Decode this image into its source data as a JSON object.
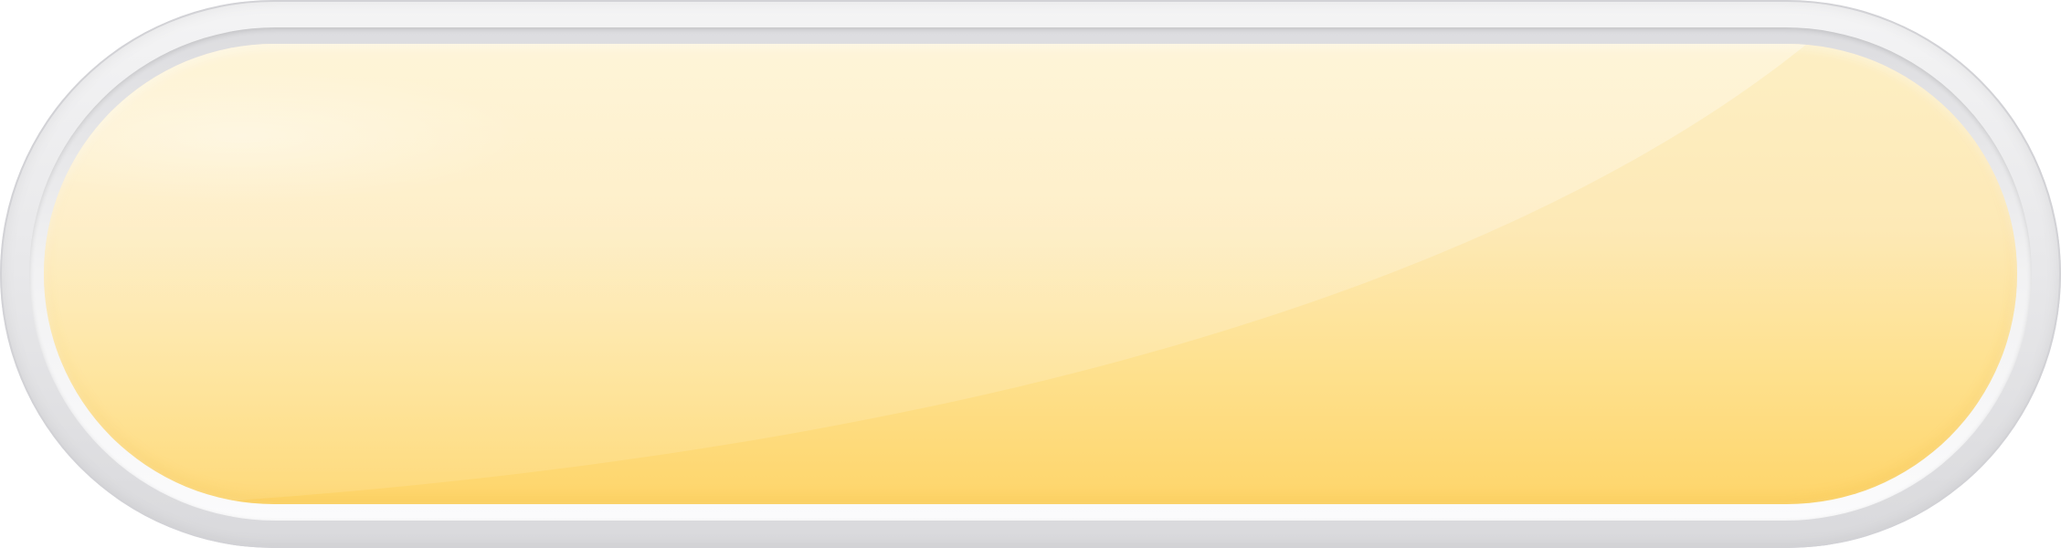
{
  "button": {
    "label": "",
    "colors": {
      "frame": "#e9e9eb",
      "face_top": "#fdefc4",
      "face_bottom": "#fed56a"
    }
  }
}
